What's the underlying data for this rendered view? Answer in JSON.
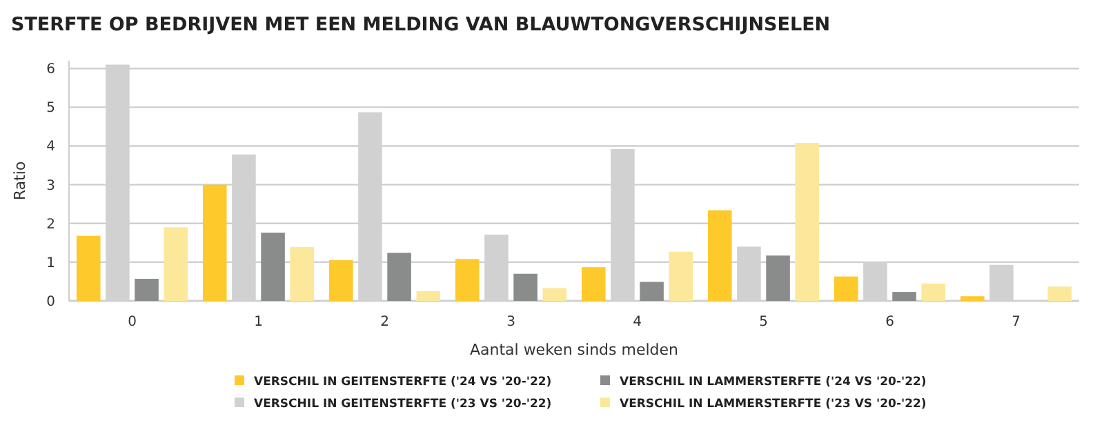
{
  "chart_data": {
    "type": "bar",
    "title": "STERFTE OP BEDRIJVEN MET EEN MELDING VAN BLAUWTONGVERSCHIJNSELEN",
    "xlabel": "Aantal weken sinds melden",
    "ylabel": "Ratio",
    "categories": [
      "0",
      "1",
      "2",
      "3",
      "4",
      "5",
      "6",
      "7"
    ],
    "series": [
      {
        "name": "VERSCHIL IN GEITENSTERFTE ('24 VS '20-'22)",
        "color": "#fec92b",
        "values": [
          1.68,
          3.0,
          1.05,
          1.08,
          0.87,
          2.34,
          0.63,
          0.12
        ]
      },
      {
        "name": "VERSCHIL IN GEITENSTERFTE ('23 VS '20-'22)",
        "color": "#d0d1d0",
        "values": [
          6.1,
          3.78,
          4.87,
          1.71,
          3.92,
          1.4,
          1.01,
          0.93
        ]
      },
      {
        "name": "VERSCHIL IN LAMMERSTERFTE ('24 VS '20-'22)",
        "color": "#8a8c8c",
        "values": [
          0.57,
          1.76,
          1.24,
          0.7,
          0.49,
          1.17,
          0.23,
          null
        ]
      },
      {
        "name": "VERSCHIL IN LAMMERSTERFTE ('23 VS '20-'22)",
        "color": "#fbe89a",
        "values": [
          1.9,
          1.39,
          0.25,
          0.33,
          1.27,
          4.08,
          0.45,
          0.37
        ]
      }
    ],
    "ylim": [
      0,
      6.2
    ],
    "yticks": [
      0,
      1,
      2,
      3,
      4,
      5,
      6
    ],
    "grid": "y",
    "legend": "bottom"
  }
}
